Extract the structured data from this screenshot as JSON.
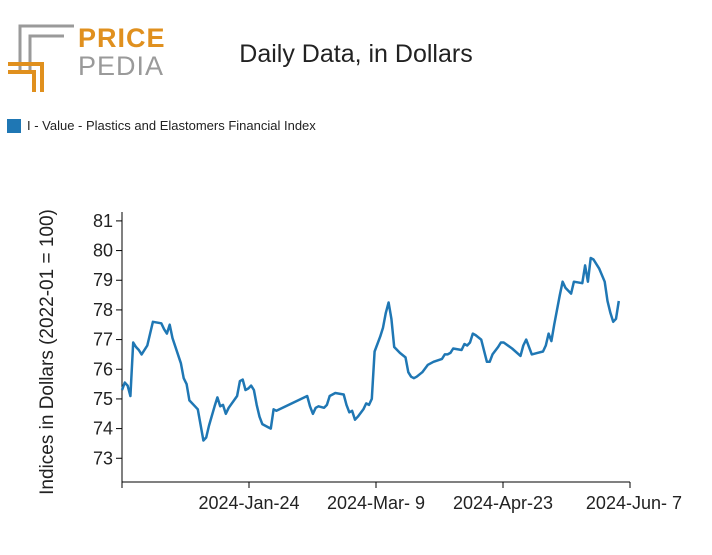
{
  "logo": {
    "word_top": "PRICE",
    "word_bottom": "PEDIA"
  },
  "chart_data": {
    "type": "line",
    "title": "Daily Data, in Dollars",
    "ylabel": "Indices in Dollars (2022-01 = 100)",
    "xlabel": "",
    "x_ticks": [
      "2024-Jan-24",
      "2024-Mar- 9",
      "2024-Apr-23",
      "2024-Jun- 7"
    ],
    "y_ticks": [
      73,
      74,
      75,
      76,
      77,
      78,
      79,
      80,
      81
    ],
    "ylim": [
      72.2,
      81.3
    ],
    "xlim": [
      "2023-12-09",
      "2024-06-07"
    ],
    "legend": "top-left",
    "grid": false,
    "series": [
      {
        "name": "I - Value - Plastics and Elastomers Financial Index",
        "color": "#1f77b4",
        "points": [
          [
            "2023-12-09",
            75.3
          ],
          [
            "2023-12-10",
            75.55
          ],
          [
            "2023-12-11",
            75.45
          ],
          [
            "2023-12-12",
            75.1
          ],
          [
            "2023-12-13",
            76.9
          ],
          [
            "2023-12-14",
            76.75
          ],
          [
            "2023-12-15",
            76.65
          ],
          [
            "2023-12-16",
            76.5
          ],
          [
            "2023-12-18",
            76.8
          ],
          [
            "2023-12-19",
            77.2
          ],
          [
            "2023-12-20",
            77.6
          ],
          [
            "2023-12-23",
            77.55
          ],
          [
            "2023-12-24",
            77.35
          ],
          [
            "2023-12-25",
            77.2
          ],
          [
            "2023-12-26",
            77.5
          ],
          [
            "2023-12-27",
            77.05
          ],
          [
            "2023-12-30",
            76.2
          ],
          [
            "2023-12-31",
            75.7
          ],
          [
            "2024-01-01",
            75.5
          ],
          [
            "2024-01-02",
            74.95
          ],
          [
            "2024-01-04",
            74.75
          ],
          [
            "2024-01-05",
            74.65
          ],
          [
            "2024-01-07",
            73.6
          ],
          [
            "2024-01-08",
            73.7
          ],
          [
            "2024-01-09",
            74.1
          ],
          [
            "2024-01-11",
            74.75
          ],
          [
            "2024-01-12",
            75.05
          ],
          [
            "2024-01-13",
            74.75
          ],
          [
            "2024-01-14",
            74.8
          ],
          [
            "2024-01-15",
            74.5
          ],
          [
            "2024-01-16",
            74.7
          ],
          [
            "2024-01-19",
            75.1
          ],
          [
            "2024-01-20",
            75.6
          ],
          [
            "2024-01-21",
            75.65
          ],
          [
            "2024-01-22",
            75.3
          ],
          [
            "2024-01-23",
            75.35
          ],
          [
            "2024-01-24",
            75.45
          ],
          [
            "2024-01-25",
            75.3
          ],
          [
            "2024-01-26",
            74.8
          ],
          [
            "2024-01-27",
            74.4
          ],
          [
            "2024-01-28",
            74.15
          ],
          [
            "2024-01-30",
            74.05
          ],
          [
            "2024-01-31",
            74.0
          ],
          [
            "2024-02-01",
            74.65
          ],
          [
            "2024-02-02",
            74.6
          ],
          [
            "2024-02-13",
            75.1
          ],
          [
            "2024-02-14",
            74.75
          ],
          [
            "2024-02-15",
            74.5
          ],
          [
            "2024-02-16",
            74.7
          ],
          [
            "2024-02-17",
            74.75
          ],
          [
            "2024-02-19",
            74.7
          ],
          [
            "2024-02-20",
            74.8
          ],
          [
            "2024-02-21",
            75.1
          ],
          [
            "2024-02-23",
            75.2
          ],
          [
            "2024-02-26",
            75.15
          ],
          [
            "2024-02-27",
            74.8
          ],
          [
            "2024-02-28",
            74.55
          ],
          [
            "2024-02-29",
            74.6
          ],
          [
            "2024-03-01",
            74.3
          ],
          [
            "2024-03-02",
            74.4
          ],
          [
            "2024-03-04",
            74.65
          ],
          [
            "2024-03-05",
            74.85
          ],
          [
            "2024-03-06",
            74.8
          ],
          [
            "2024-03-07",
            75.0
          ],
          [
            "2024-03-08",
            76.6
          ],
          [
            "2024-03-10",
            77.1
          ],
          [
            "2024-03-11",
            77.4
          ],
          [
            "2024-03-12",
            77.9
          ],
          [
            "2024-03-13",
            78.25
          ],
          [
            "2024-03-14",
            77.7
          ],
          [
            "2024-03-15",
            76.75
          ],
          [
            "2024-03-17",
            76.55
          ],
          [
            "2024-03-19",
            76.4
          ],
          [
            "2024-03-20",
            75.9
          ],
          [
            "2024-03-21",
            75.75
          ],
          [
            "2024-03-22",
            75.7
          ],
          [
            "2024-03-23",
            75.75
          ],
          [
            "2024-03-25",
            75.9
          ],
          [
            "2024-03-27",
            76.15
          ],
          [
            "2024-03-29",
            76.25
          ],
          [
            "2024-04-01",
            76.35
          ],
          [
            "2024-04-02",
            76.5
          ],
          [
            "2024-04-03",
            76.5
          ],
          [
            "2024-04-04",
            76.55
          ],
          [
            "2024-04-05",
            76.7
          ],
          [
            "2024-04-08",
            76.65
          ],
          [
            "2024-04-09",
            76.85
          ],
          [
            "2024-04-10",
            76.8
          ],
          [
            "2024-04-11",
            76.9
          ],
          [
            "2024-04-12",
            77.2
          ],
          [
            "2024-04-13",
            77.15
          ],
          [
            "2024-04-15",
            77.0
          ],
          [
            "2024-04-17",
            76.25
          ],
          [
            "2024-04-18",
            76.25
          ],
          [
            "2024-04-19",
            76.5
          ],
          [
            "2024-04-21",
            76.75
          ],
          [
            "2024-04-22",
            76.9
          ],
          [
            "2024-04-23",
            76.9
          ],
          [
            "2024-04-26",
            76.7
          ],
          [
            "2024-04-29",
            76.45
          ],
          [
            "2024-04-30",
            76.8
          ],
          [
            "2024-05-01",
            77.0
          ],
          [
            "2024-05-03",
            76.5
          ],
          [
            "2024-05-05",
            76.55
          ],
          [
            "2024-05-07",
            76.6
          ],
          [
            "2024-05-08",
            76.8
          ],
          [
            "2024-05-09",
            77.2
          ],
          [
            "2024-05-10",
            76.95
          ],
          [
            "2024-05-11",
            77.5
          ],
          [
            "2024-05-13",
            78.5
          ],
          [
            "2024-05-14",
            78.95
          ],
          [
            "2024-05-15",
            78.75
          ],
          [
            "2024-05-17",
            78.55
          ],
          [
            "2024-05-18",
            78.95
          ],
          [
            "2024-05-21",
            78.9
          ],
          [
            "2024-05-22",
            79.5
          ],
          [
            "2024-05-23",
            78.95
          ],
          [
            "2024-05-24",
            79.75
          ],
          [
            "2024-05-25",
            79.7
          ],
          [
            "2024-05-27",
            79.4
          ],
          [
            "2024-05-29",
            78.95
          ],
          [
            "2024-05-30",
            78.3
          ],
          [
            "2024-05-31",
            77.9
          ],
          [
            "2024-06-01",
            77.6
          ],
          [
            "2024-06-02",
            77.7
          ],
          [
            "2024-06-03",
            78.3
          ]
        ]
      }
    ]
  }
}
